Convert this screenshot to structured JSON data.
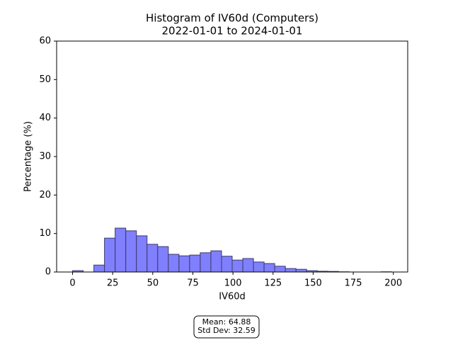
{
  "chart_data": {
    "type": "histogram",
    "title": [
      "Histogram of IV60d (Computers)",
      "2022-01-01 to 2024-01-01"
    ],
    "xlabel": "IV60d",
    "ylabel": "Percentage (%)",
    "bins": [
      0,
      6.63,
      13.27,
      19.9,
      26.53,
      33.17,
      39.8,
      46.43,
      53.07,
      59.7,
      66.33,
      72.97,
      79.6,
      86.23,
      92.87,
      99.5,
      106.13,
      112.77,
      119.4,
      126.03,
      132.67,
      139.3,
      145.93,
      152.57,
      159.2,
      165.83,
      172.47,
      179.1,
      185.73,
      192.37,
      199
    ],
    "counts": [
      0.35,
      0,
      1.8,
      8.8,
      11.4,
      10.7,
      9.4,
      7.2,
      6.6,
      4.6,
      4.2,
      4.4,
      5.0,
      5.5,
      4.1,
      3.1,
      3.5,
      2.6,
      2.2,
      1.5,
      0.9,
      0.7,
      0.35,
      0.2,
      0.15,
      0.05,
      0,
      0,
      0,
      0.05
    ],
    "color": "#8080ff",
    "edgecolor": "#3a3a6a",
    "xlim": [
      -9.95,
      208.95
    ],
    "ylim": [
      0,
      60
    ],
    "xticks": [
      0,
      25,
      50,
      75,
      100,
      125,
      150,
      175,
      200
    ],
    "yticks": [
      0,
      10,
      20,
      30,
      40,
      50,
      60
    ],
    "grid": false,
    "stats": [
      "Mean: 64.88",
      "Std Dev: 32.59"
    ]
  }
}
